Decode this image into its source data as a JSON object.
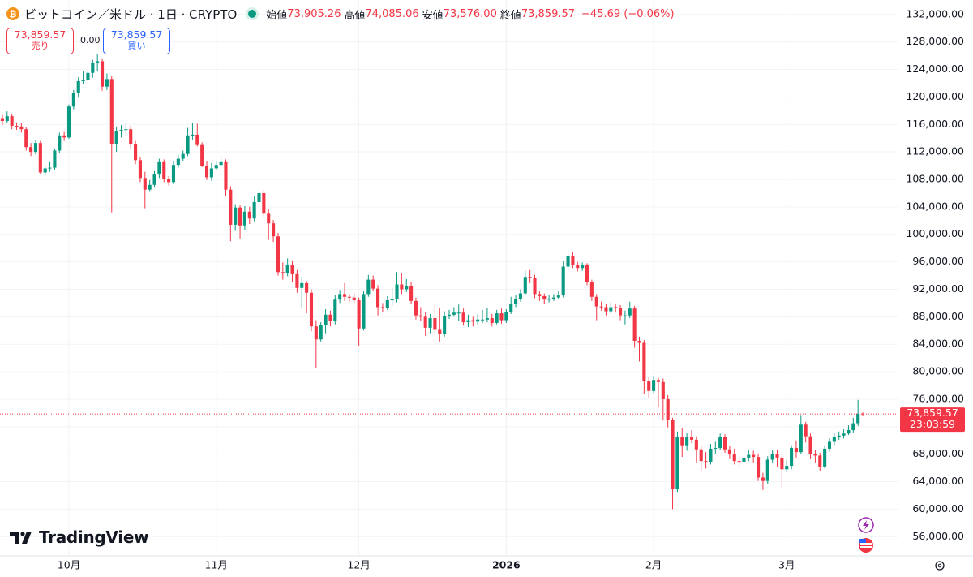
{
  "header": {
    "symbol": "ビットコイン／米ドル · 1日 · CRYPTO",
    "ohlc": [
      {
        "label": "始値",
        "value": "73,905.26"
      },
      {
        "label": "高値",
        "value": "74,085.06"
      },
      {
        "label": "安値",
        "value": "73,576.00"
      },
      {
        "label": "終値",
        "value": "73,859.57"
      }
    ],
    "change": "−45.69 (−0.06%)"
  },
  "trade": {
    "sell": {
      "price": "73,859.57",
      "label": "売り"
    },
    "spread": "0.00",
    "buy": {
      "price": "73,859.57",
      "label": "買い"
    }
  },
  "logo": "TradingView",
  "chart_data": {
    "type": "candlestick",
    "up_color": "#089981",
    "down_color": "#f23645",
    "grid": true,
    "last_price": {
      "value": 73859.57,
      "label": "73,859.57"
    },
    "countdown": "23:03:59",
    "xlim": [
      -0.5,
      188.5
    ],
    "ylim": [
      53200,
      134100
    ],
    "xticks": [
      {
        "value": 14,
        "label": "10月"
      },
      {
        "value": 45,
        "label": "11月"
      },
      {
        "value": 75,
        "label": "12月"
      },
      {
        "value": 106,
        "label": "2026"
      },
      {
        "value": 137,
        "label": "2月"
      },
      {
        "value": 165,
        "label": "3月"
      }
    ],
    "yticks": [
      {
        "value": 56000,
        "label": "56,000.00"
      },
      {
        "value": 60000,
        "label": "60,000.00"
      },
      {
        "value": 64000,
        "label": "64,000.00"
      },
      {
        "value": 68000,
        "label": "68,000.00"
      },
      {
        "value": 72000,
        "label": "72,000.00"
      },
      {
        "value": 76000,
        "label": "76,000.00"
      },
      {
        "value": 80000,
        "label": "80,000.00"
      },
      {
        "value": 84000,
        "label": "84,000.00"
      },
      {
        "value": 88000,
        "label": "88,000.00"
      },
      {
        "value": 92000,
        "label": "92,000.00"
      },
      {
        "value": 96000,
        "label": "96,000.00"
      },
      {
        "value": 100000,
        "label": "100,000.00"
      },
      {
        "value": 104000,
        "label": "104,000.00"
      },
      {
        "value": 108000,
        "label": "108,000.00"
      },
      {
        "value": 112000,
        "label": "112,000.00"
      },
      {
        "value": 116000,
        "label": "116,000.00"
      },
      {
        "value": 120000,
        "label": "120,000.00"
      },
      {
        "value": 124000,
        "label": "124,000.00"
      },
      {
        "value": 128000,
        "label": "128,000.00"
      },
      {
        "value": 132000,
        "label": "132,000.00"
      }
    ],
    "open": [
      116800,
      116500,
      117200,
      115800,
      115700,
      115300,
      112700,
      112000,
      113300,
      109000,
      109600,
      109700,
      112200,
      114400,
      114100,
      118600,
      120600,
      122300,
      122400,
      123500,
      124900,
      125200,
      121500,
      122600,
      113200,
      115000,
      115200,
      115300,
      113100,
      110800,
      108200,
      106500,
      107200,
      108700,
      110500,
      108000,
      107600,
      110100,
      111000,
      111700,
      114400,
      114500,
      113000,
      110000,
      108300,
      109600,
      110100,
      110500,
      106500,
      101400,
      103900,
      101300,
      103300,
      102300,
      104700,
      106000,
      103000,
      101600,
      99700,
      94500,
      94300,
      95600,
      94200,
      92200,
      92900,
      91500,
      86600,
      84700,
      86800,
      88300,
      87400,
      90500,
      91300,
      90900,
      90800,
      90400,
      86300,
      91300,
      93400,
      92100,
      89400,
      89300,
      90400,
      90600,
      92700,
      92000,
      92500,
      90300,
      88200,
      88000,
      86400,
      87800,
      86100,
      85500,
      88100,
      88300,
      88600,
      88600,
      87200,
      87500,
      87300,
      87600,
      87600,
      87800,
      87100,
      88500,
      87500,
      88700,
      89900,
      90600,
      91400,
      93800,
      93700,
      91300,
      91000,
      90500,
      90600,
      90800,
      91100,
      95300,
      96900,
      95500,
      95100,
      95500,
      93000,
      90900,
      89500,
      89400,
      88800,
      89400,
      89300,
      88200,
      88200,
      89200,
      84500,
      84200,
      78600,
      77200,
      78800,
      78500,
      76000,
      73000,
      62900,
      70500,
      69300,
      70500,
      70100,
      68700,
      67000,
      66900,
      68800,
      68900,
      70500,
      68700,
      68000,
      67000,
      66900,
      67500,
      67900,
      67600,
      64600,
      64100,
      67200,
      68000,
      67500,
      65800,
      66300,
      68900,
      68300,
      72300,
      70600,
      68000,
      67800,
      66200,
      68800,
      69800,
      70500,
      70700,
      71000,
      71500,
      72500,
      73905.26
    ],
    "high": [
      117400,
      117900,
      117500,
      116300,
      116200,
      115600,
      113300,
      113800,
      113600,
      110000,
      110500,
      112500,
      114800,
      114900,
      118900,
      121000,
      122900,
      123800,
      124500,
      125400,
      126300,
      125500,
      123400,
      123000,
      115700,
      115900,
      116200,
      115800,
      113600,
      111300,
      109100,
      107900,
      109200,
      111000,
      110900,
      108500,
      110600,
      111600,
      112200,
      115500,
      116200,
      116100,
      113400,
      110600,
      110400,
      110600,
      111200,
      110900,
      107000,
      104400,
      104300,
      104100,
      104000,
      105500,
      107500,
      106500,
      103700,
      102100,
      100200,
      95900,
      96500,
      96200,
      94800,
      93800,
      93200,
      92000,
      87500,
      87200,
      89100,
      88900,
      91200,
      91900,
      92900,
      91300,
      91400,
      90800,
      91800,
      94100,
      94000,
      92600,
      90000,
      91000,
      92200,
      94500,
      94400,
      93500,
      93100,
      90800,
      89400,
      88700,
      88400,
      89900,
      89300,
      88800,
      89000,
      89400,
      89800,
      89200,
      88300,
      88000,
      88400,
      89000,
      89300,
      88400,
      89000,
      89200,
      89100,
      90900,
      91100,
      92000,
      94700,
      94800,
      94100,
      91800,
      91400,
      91100,
      91300,
      91700,
      96200,
      97800,
      97400,
      96000,
      95900,
      95800,
      93400,
      91300,
      90200,
      89900,
      90100,
      89800,
      89700,
      88900,
      90200,
      89600,
      85100,
      84600,
      79200,
      79400,
      79100,
      79000,
      76600,
      73300,
      71300,
      71800,
      71100,
      71500,
      70600,
      69200,
      68300,
      69500,
      69800,
      71000,
      70900,
      69200,
      68800,
      67600,
      68100,
      68600,
      68500,
      68100,
      65300,
      67700,
      68600,
      68700,
      67900,
      67200,
      69300,
      70000,
      73700,
      72700,
      71000,
      68600,
      68200,
      69300,
      70300,
      71000,
      71300,
      71600,
      72200,
      73300,
      75900,
      74085.06
    ],
    "low": [
      115900,
      116200,
      115300,
      115200,
      114800,
      112200,
      111400,
      111600,
      108700,
      108600,
      109100,
      109400,
      111800,
      113600,
      113900,
      118200,
      119900,
      121900,
      121800,
      122800,
      123700,
      120900,
      121000,
      103200,
      112000,
      114100,
      114500,
      112500,
      110200,
      107600,
      103800,
      106300,
      106800,
      108200,
      107600,
      107100,
      107300,
      109700,
      110600,
      111400,
      113800,
      112800,
      109800,
      107900,
      107800,
      109300,
      109900,
      105500,
      99000,
      100500,
      99400,
      100600,
      101500,
      101900,
      104300,
      102500,
      99200,
      98900,
      94000,
      93400,
      93900,
      93100,
      91500,
      89300,
      88500,
      85900,
      80600,
      84400,
      85600,
      86600,
      86900,
      90000,
      90300,
      90200,
      90000,
      83800,
      86000,
      90900,
      91700,
      88200,
      88700,
      89000,
      89600,
      90100,
      91300,
      91600,
      89800,
      87600,
      87400,
      85200,
      85600,
      85300,
      84400,
      85100,
      87700,
      88000,
      87400,
      86700,
      86500,
      86600,
      86900,
      87100,
      87200,
      86600,
      86900,
      87000,
      87100,
      88400,
      89400,
      90200,
      91100,
      92900,
      90700,
      90300,
      89900,
      90100,
      90300,
      90500,
      90800,
      94800,
      95100,
      94600,
      94700,
      92600,
      90300,
      87500,
      88900,
      88200,
      88400,
      88600,
      87500,
      86900,
      87800,
      83500,
      81500,
      76800,
      76200,
      76900,
      74800,
      72900,
      71900,
      60000,
      62500,
      67600,
      68500,
      69600,
      66800,
      65600,
      65900,
      66500,
      68100,
      68600,
      68200,
      67400,
      66500,
      66100,
      66400,
      67000,
      66800,
      64100,
      62800,
      63700,
      66800,
      66200,
      63200,
      65400,
      65800,
      67500,
      68000,
      69700,
      67300,
      66800,
      65600,
      65900,
      68400,
      69300,
      70100,
      70300,
      70800,
      71100,
      72100,
      73576
    ],
    "close": [
      116500,
      117200,
      115800,
      115700,
      115300,
      112700,
      112000,
      113300,
      109000,
      109600,
      109700,
      112200,
      114400,
      114100,
      118600,
      120600,
      122300,
      122400,
      123500,
      124900,
      125200,
      121500,
      122600,
      113200,
      115000,
      115200,
      115300,
      113100,
      110800,
      108200,
      106500,
      107200,
      108700,
      110500,
      108000,
      107600,
      110100,
      111000,
      111700,
      114400,
      114500,
      113000,
      110000,
      108300,
      109600,
      110100,
      110500,
      106500,
      101400,
      103900,
      101300,
      103300,
      102300,
      104700,
      106000,
      103000,
      101600,
      99700,
      94500,
      94300,
      95600,
      94200,
      92200,
      92900,
      91500,
      86600,
      84700,
      86800,
      88300,
      87400,
      90500,
      91300,
      90900,
      90800,
      90400,
      86300,
      91300,
      93400,
      92100,
      89400,
      89300,
      90400,
      90600,
      92700,
      92000,
      92500,
      90300,
      88200,
      88000,
      86400,
      87800,
      86100,
      85500,
      88100,
      88300,
      88600,
      88600,
      87200,
      87500,
      87300,
      87600,
      87600,
      87800,
      87100,
      88500,
      87500,
      88700,
      89900,
      90600,
      91400,
      93800,
      93700,
      91300,
      91000,
      90500,
      90600,
      90800,
      91100,
      95300,
      96900,
      95500,
      95100,
      95500,
      93000,
      90900,
      89500,
      89400,
      88800,
      89400,
      89300,
      88200,
      88200,
      89200,
      84500,
      84200,
      78600,
      77200,
      78800,
      78500,
      76000,
      73000,
      62900,
      70500,
      69300,
      70500,
      70100,
      68700,
      67000,
      66900,
      68800,
      68900,
      70500,
      68700,
      68000,
      67000,
      66900,
      67500,
      67900,
      67600,
      64600,
      64100,
      67200,
      68000,
      67500,
      65800,
      66300,
      68900,
      68300,
      72300,
      70600,
      68000,
      67800,
      66200,
      68800,
      69800,
      70500,
      70700,
      71000,
      71500,
      72500,
      73905.26,
      73859.57
    ]
  }
}
